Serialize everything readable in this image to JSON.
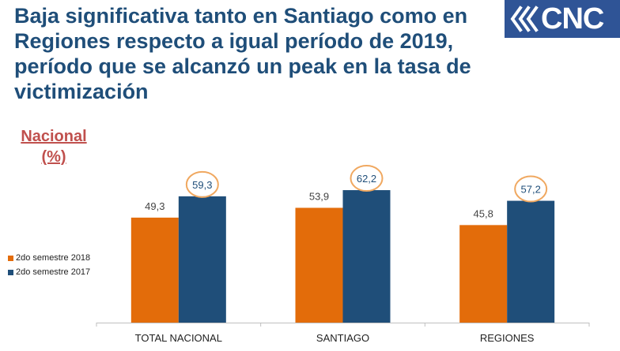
{
  "title": {
    "lines": [
      "Baja significativa tanto en Santiago como en",
      "Regiones respecto a igual período de 2019,",
      "período que se alcanzó un peak en la tasa de",
      "victimización"
    ]
  },
  "logo": {
    "text": "CNC",
    "background": "#2f5496"
  },
  "subtitle": {
    "line1": "Nacional",
    "line2": "(%)"
  },
  "colors": {
    "series1": "#e36c0a",
    "series2": "#1f4e79",
    "highlight": "#f0a860",
    "title": "#1f4e79",
    "subtitle": "#c0504d"
  },
  "chart_data": {
    "type": "bar",
    "title": "",
    "categories": [
      "TOTAL NACIONAL",
      "SANTIAGO",
      "REGIONES"
    ],
    "series": [
      {
        "name": "2do semestre 2018",
        "values": [
          49.3,
          53.9,
          45.8
        ],
        "labels": [
          "49,3",
          "53,9",
          "45,8"
        ],
        "color": "#e36c0a"
      },
      {
        "name": "2do semestre 2017",
        "values": [
          59.3,
          62.2,
          57.2
        ],
        "labels": [
          "59,3",
          "62,2",
          "57,2"
        ],
        "color": "#1f4e79",
        "circled": true
      }
    ],
    "xlabel": "",
    "ylabel": "Nacional (%)",
    "ylim": [
      0,
      100
    ],
    "grid": false,
    "legend": "left"
  }
}
